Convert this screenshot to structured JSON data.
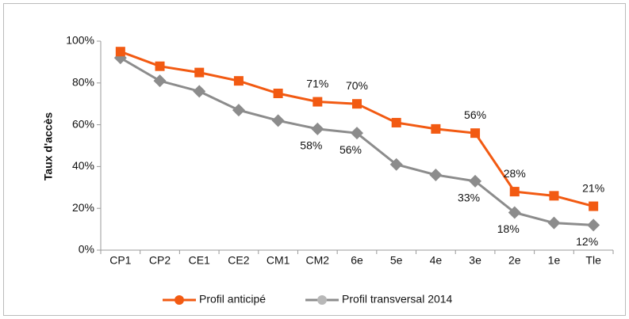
{
  "chart_data": {
    "type": "line",
    "y_label": "Taux d'accès",
    "categories": [
      "CP1",
      "CP2",
      "CE1",
      "CE2",
      "CM1",
      "CM2",
      "6e",
      "5e",
      "4e",
      "3e",
      "2e",
      "1e",
      "Tle"
    ],
    "series": [
      {
        "name": "Profil anticipé",
        "color": "#f25a12",
        "marker": "square",
        "values": [
          95,
          88,
          85,
          81,
          75,
          71,
          70,
          61,
          58,
          56,
          28,
          26,
          21
        ],
        "value_labels": [
          null,
          null,
          null,
          null,
          null,
          "71%",
          "70%",
          null,
          null,
          "56%",
          "28%",
          null,
          "21%"
        ]
      },
      {
        "name": "Profil transversal 2014",
        "color": "#8c8c8c",
        "marker": "diamond",
        "values": [
          92,
          81,
          76,
          67,
          62,
          58,
          56,
          41,
          36,
          33,
          18,
          13,
          12
        ],
        "value_labels": [
          null,
          null,
          null,
          null,
          null,
          "58%",
          "56%",
          null,
          null,
          "33%",
          "18%",
          null,
          "12%"
        ]
      }
    ],
    "ylim": [
      0,
      100
    ],
    "yticks": [
      {
        "value": 0,
        "label": "0%"
      },
      {
        "value": 20,
        "label": "20%"
      },
      {
        "value": 40,
        "label": "40%"
      },
      {
        "value": 60,
        "label": "60%"
      },
      {
        "value": 80,
        "label": "80%"
      },
      {
        "value": 100,
        "label": "100%"
      }
    ],
    "legend": "bottom"
  }
}
